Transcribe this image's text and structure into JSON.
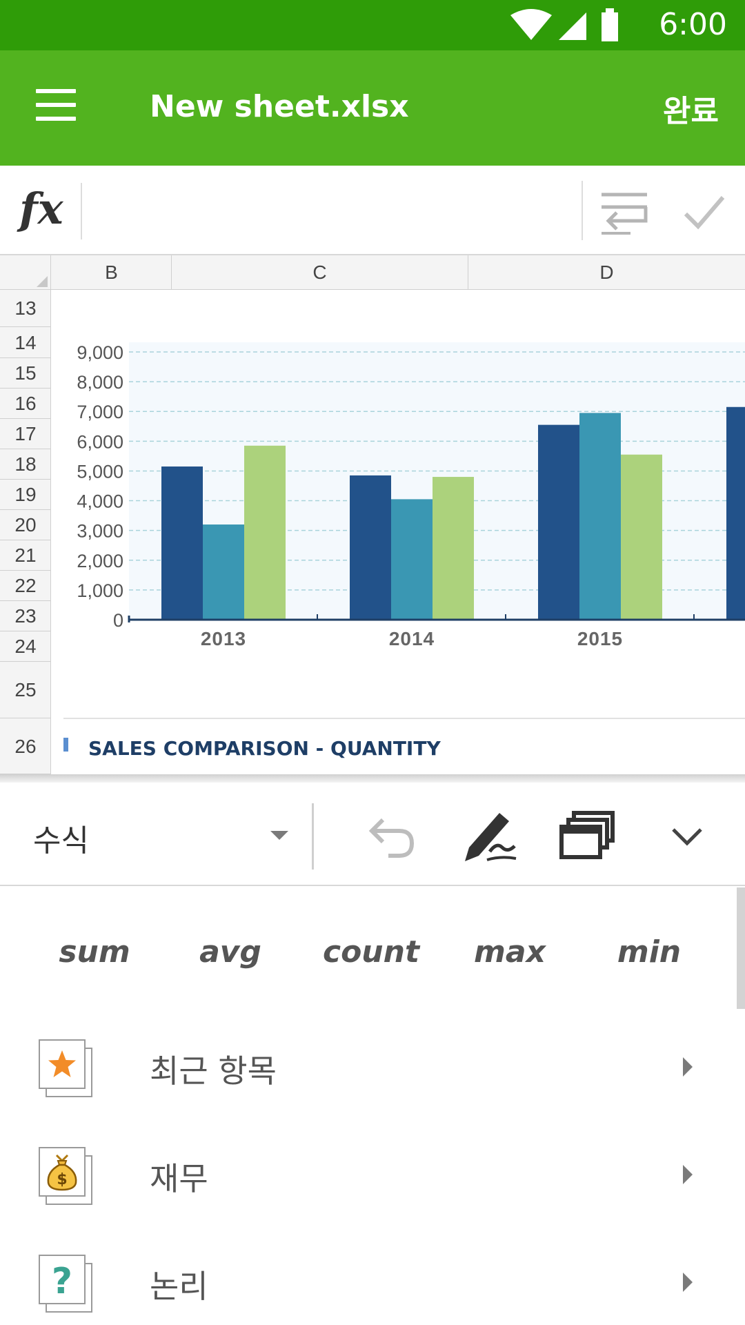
{
  "status_bar": {
    "time": "6:00"
  },
  "app_bar": {
    "title": "New sheet.xlsx",
    "done_label": "완료"
  },
  "formula_bar": {
    "fx_label": "fx",
    "value": ""
  },
  "sheet": {
    "columns": [
      "B",
      "C",
      "D"
    ],
    "rows": [
      "13",
      "14",
      "15",
      "16",
      "17",
      "18",
      "19",
      "20",
      "21",
      "22",
      "23",
      "24",
      "25",
      "26"
    ]
  },
  "chart_data": {
    "type": "bar",
    "title": "SALES COMPARISON - QUANTITY",
    "categories": [
      "2013",
      "2014",
      "2015"
    ],
    "series": [
      {
        "color": "#22528a",
        "values": [
          5150,
          4850,
          6550
        ]
      },
      {
        "color": "#3a97b3",
        "values": [
          3200,
          4050,
          6950
        ]
      },
      {
        "color": "#acd27c",
        "values": [
          5850,
          4800,
          5550
        ]
      }
    ],
    "extra_partial_bar": {
      "color": "#22528a",
      "value": 7150
    },
    "ylim": [
      0,
      9000
    ],
    "yticks": [
      "0",
      "1,000",
      "2,000",
      "3,000",
      "4,000",
      "5,000",
      "6,000",
      "7,000",
      "8,000",
      "9,000"
    ],
    "grid": true,
    "legend": "none"
  },
  "toolbar": {
    "category_label": "수식",
    "icons": [
      "undo-icon",
      "pen-icon",
      "windows-icon",
      "chevron-down-icon"
    ]
  },
  "functions": {
    "quick": [
      "sum",
      "avg",
      "count",
      "max",
      "min"
    ],
    "categories": [
      {
        "label": "최근 항목",
        "icon": "star-icon"
      },
      {
        "label": "재무",
        "icon": "money-bag-icon"
      },
      {
        "label": "논리",
        "icon": "question-icon"
      }
    ]
  }
}
